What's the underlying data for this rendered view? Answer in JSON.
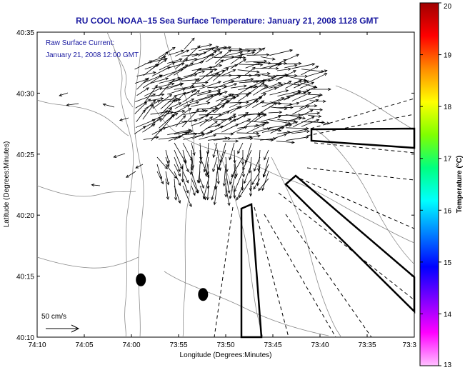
{
  "title": "RU COOL  NOAA–15  Sea Surface Temperature:  January 21, 2008 1128 GMT",
  "annotation": {
    "line1": "Raw Surface Current:",
    "line2": "January 21, 2008 12:00 GMT"
  },
  "scale_label": "50 cm/s",
  "axes": {
    "xlabel": "Longitude (Degrees:Minutes)",
    "ylabel": "Latitude (Degrees:Minutes)",
    "x_ticks": [
      "74:10",
      "74:05",
      "74:00",
      "73:55",
      "73:50",
      "73:45",
      "73:40",
      "73:35",
      "73:3"
    ],
    "y_ticks": [
      "40:35",
      "40:30",
      "40:25",
      "40:20",
      "40:15",
      "40:10"
    ],
    "xlim_minutes_west": [
      610,
      570
    ],
    "ylim_minutes_north": [
      2410,
      2435
    ]
  },
  "colorbar": {
    "label": "Temperature (°C)",
    "min": 13,
    "max": 20,
    "ticks": [
      "20",
      "19",
      "18",
      "17",
      "16",
      "15",
      "14",
      "13"
    ],
    "stops": [
      "#a00000",
      "#ff0000",
      "#ff8c00",
      "#ffff00",
      "#80ff00",
      "#00ff80",
      "#00ffff",
      "#0080ff",
      "#0000ff",
      "#8000ff",
      "#ff00ff",
      "#ffc0ff"
    ]
  },
  "markers": [
    {
      "name": "station-a",
      "lon_min": 599.0,
      "lat_min": 2414.7
    },
    {
      "name": "station-b",
      "lon_min": 592.4,
      "lat_min": 2413.5
    }
  ],
  "colors": {
    "title": "#1a1aa0",
    "contour": "#8a8a8a",
    "vector": "#000000"
  }
}
